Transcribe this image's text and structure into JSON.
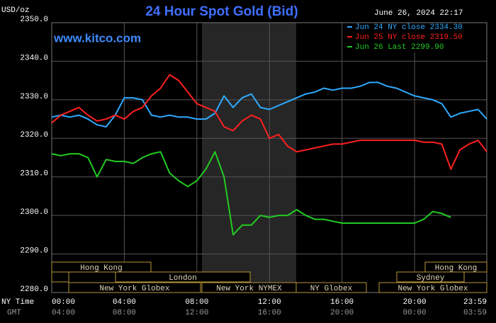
{
  "chart_data": {
    "type": "line",
    "title": "24 Hour Spot Gold (Bid)",
    "date": "June 26, 2024 22:17",
    "watermark": "www.kitco.com",
    "ylabel": "USD/oz",
    "row_labels": [
      "NY Time",
      "GMT"
    ],
    "xlim": [
      0,
      23.98
    ],
    "ylim": [
      2280,
      2350
    ],
    "yticks": [
      {
        "value": 2280,
        "label": "2280.0"
      },
      {
        "value": 2290,
        "label": "2290.0"
      },
      {
        "value": 2300,
        "label": "2300.0"
      },
      {
        "value": 2310,
        "label": "2310.0"
      },
      {
        "value": 2320,
        "label": "2320.0"
      },
      {
        "value": 2330,
        "label": "2330.0"
      },
      {
        "value": 2340,
        "label": "2340.0"
      },
      {
        "value": 2350,
        "label": "2350.0"
      }
    ],
    "xticks": [
      {
        "value": 0,
        "label": "00:00"
      },
      {
        "value": 4,
        "label": "04:00"
      },
      {
        "value": 8,
        "label": "08:00"
      },
      {
        "value": 12,
        "label": "12:00"
      },
      {
        "value": 16,
        "label": "16:00"
      },
      {
        "value": 20,
        "label": "20:00"
      },
      {
        "value": 23.98,
        "label": "23:59"
      }
    ],
    "gmt_labels": [
      "04:00",
      "08:00",
      "12:00",
      "16:00",
      "20:00",
      "00:00",
      "03:59"
    ],
    "grid": true,
    "sessions": [
      "Hong Kong",
      "Hong Kong",
      "London",
      "Sydney",
      "New York Globex",
      "New York NYMEX",
      "NY Globex",
      "New York Globex"
    ],
    "x": [
      0,
      0.5,
      1,
      1.5,
      2,
      2.5,
      3,
      3.5,
      4,
      4.5,
      5,
      5.5,
      6,
      6.5,
      7,
      7.5,
      8,
      8.5,
      9,
      9.5,
      10,
      10.5,
      11,
      11.5,
      12,
      12.5,
      13,
      13.5,
      14,
      14.5,
      15,
      15.5,
      16,
      16.5,
      17,
      17.5,
      18,
      18.5,
      19,
      19.5,
      20,
      20.5,
      21,
      21.5,
      22,
      22.5,
      23,
      23.5,
      23.98
    ],
    "series": [
      {
        "name": "Jun 24 NY close 2334.30",
        "color": "#2eaaff",
        "values": [
          2325.5,
          2326,
          2325.5,
          2326,
          2325,
          2323.5,
          2323,
          2326,
          2330.5,
          2330.5,
          2330,
          2326,
          2325.5,
          2326,
          2325.5,
          2325.5,
          2325,
          2325,
          2326.5,
          2331,
          2328,
          2330.5,
          2331.5,
          2328,
          2327.5,
          2328.5,
          2329.5,
          2330.5,
          2331.5,
          2332,
          2333,
          2332.5,
          2333,
          2333,
          2333.5,
          2334.5,
          2334.5,
          2333.5,
          2333,
          2332,
          2331,
          2330.5,
          2330,
          2329,
          2325.5,
          2326.5,
          2327,
          2327.5,
          2325
        ]
      },
      {
        "name": "Jun 25 NY close 2319.50",
        "color": "#ff2020",
        "values": [
          2324,
          2326,
          2327,
          2328,
          2326,
          2324.5,
          2325,
          2326,
          2325,
          2327,
          2328,
          2331,
          2333,
          2336.5,
          2335,
          2332,
          2329,
          2328,
          2327,
          2323,
          2322,
          2324.5,
          2326,
          2325,
          2320,
          2321,
          2318,
          2316.5,
          2317,
          2317.5,
          2318,
          2318.5,
          2318.5,
          2319,
          2319.5,
          2319.5,
          2319.5,
          2319.5,
          2319.5,
          2319.5,
          2319.5,
          2319,
          2319,
          2318.5,
          2312,
          2317,
          2318.5,
          2319.5,
          2316.5
        ]
      },
      {
        "name": "Jun 26 Last 2299.90",
        "color": "#22cc22",
        "values": [
          2316,
          2315.5,
          2316,
          2316,
          2315,
          2310,
          2314.5,
          2314,
          2314,
          2313.5,
          2315,
          2316,
          2316.5,
          2311,
          2309,
          2307.5,
          2309,
          2312,
          2316.5,
          2310,
          2295,
          2297.5,
          2297.5,
          2300,
          2299.5,
          2300,
          2300,
          2301.5,
          2300,
          2299,
          2299,
          2298.5,
          2298,
          2298,
          2298,
          2298,
          2298,
          2298,
          2298,
          2298,
          2298,
          2299,
          2301,
          2300.5,
          2299.5,
          null,
          null,
          null,
          null
        ]
      }
    ]
  }
}
